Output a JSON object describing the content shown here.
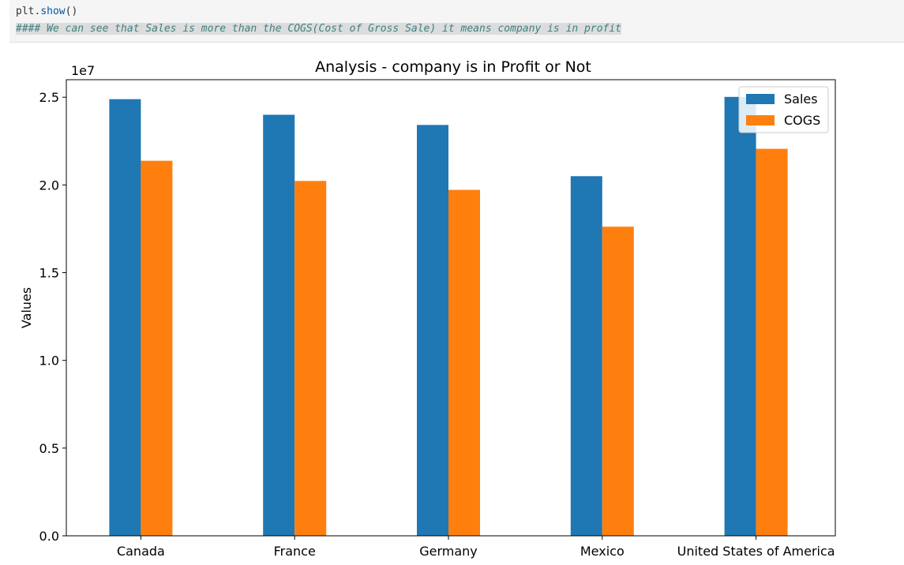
{
  "code": {
    "line1_prefix": "plt.",
    "line1_fn": "show",
    "line1_suffix": "()",
    "line2": "#### We can see that Sales is more than the COGS(Cost of Gross Sale) it means company is in profit"
  },
  "colors": {
    "sales": "#1f77b4",
    "cogs": "#ff7f0e"
  },
  "chart_data": {
    "type": "bar",
    "title": "Analysis - company is in Profit or Not",
    "xlabel": "",
    "ylabel": "Values",
    "offset_label": "1e7",
    "categories": [
      "Canada",
      "France",
      "Germany",
      "Mexico",
      "United States of America"
    ],
    "series": [
      {
        "name": "Sales",
        "values": [
          24890000,
          24000000,
          23420000,
          20500000,
          25020000
        ]
      },
      {
        "name": "COGS",
        "values": [
          21380000,
          20230000,
          19720000,
          17620000,
          22060000
        ]
      }
    ],
    "ylim": [
      0,
      26000000
    ],
    "yticks": [
      0,
      5000000,
      10000000,
      15000000,
      20000000,
      25000000
    ],
    "ytick_labels": [
      "0.0",
      "0.5",
      "1.0",
      "1.5",
      "2.0",
      "2.5"
    ],
    "legend_position": "top-right",
    "grid": false
  }
}
